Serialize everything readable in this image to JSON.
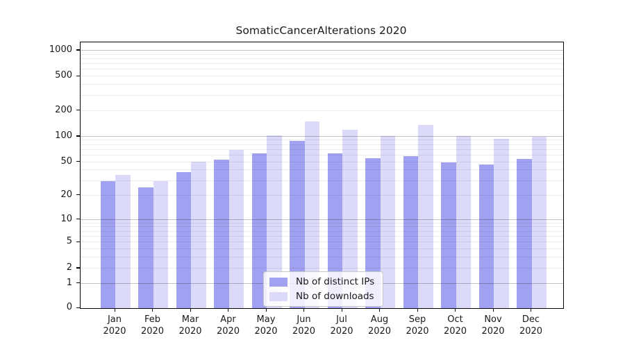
{
  "chart_data": {
    "type": "bar",
    "title": "SomaticCancerAlterations 2020",
    "xlabel": "",
    "ylabel": "",
    "categories": [
      "Jan 2020",
      "Feb 2020",
      "Mar 2020",
      "Apr 2020",
      "May 2020",
      "Jun 2020",
      "Jul 2020",
      "Aug 2020",
      "Sep 2020",
      "Oct 2020",
      "Nov 2020",
      "Dec 2020"
    ],
    "series": [
      {
        "name": "Nb of distinct IPs",
        "color": "#a1a1f1",
        "values": [
          30,
          25,
          38,
          54,
          63,
          89,
          64,
          56,
          59,
          50,
          47,
          55
        ]
      },
      {
        "name": "Nb of downloads",
        "color": "#dbdbf9",
        "values": [
          35,
          30,
          51,
          70,
          103,
          150,
          121,
          101,
          137,
          102,
          95,
          100
        ]
      }
    ],
    "yscale": "log1p",
    "yticks": [
      1000,
      500,
      200,
      100,
      50,
      20,
      10,
      5,
      2,
      1,
      0
    ],
    "ylim": [
      0,
      1200
    ],
    "grid": "both",
    "legend_position": "lower center",
    "colors": {
      "frame": "#000000",
      "major_grid": "#c3c3c3",
      "minor_grid": "#ececec"
    }
  }
}
